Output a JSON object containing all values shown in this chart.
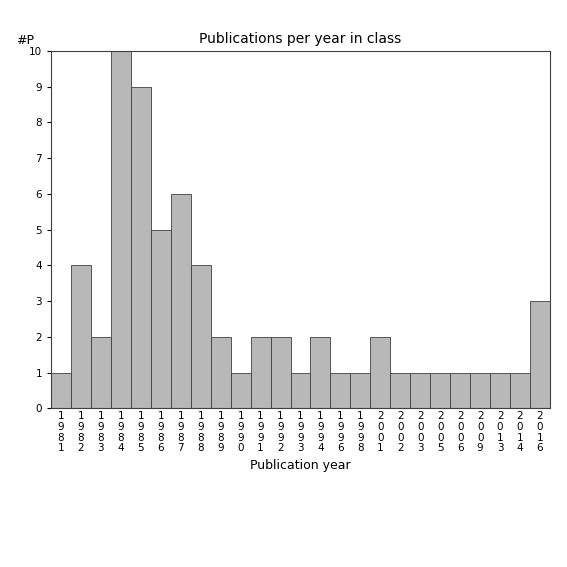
{
  "title": "Publications per year in class",
  "xlabel": "Publication year",
  "ylabel": "#P",
  "categories": [
    "1981",
    "1982",
    "1983",
    "1984",
    "1985",
    "1986",
    "1987",
    "1988",
    "1989",
    "1990",
    "1991",
    "1992",
    "1993",
    "1994",
    "1996",
    "1998",
    "2001",
    "2002",
    "2003",
    "2005",
    "2006",
    "2009",
    "2013",
    "2014",
    "2016"
  ],
  "values": [
    1,
    4,
    2,
    10,
    9,
    5,
    6,
    4,
    2,
    1,
    2,
    2,
    1,
    2,
    1,
    1,
    2,
    1,
    1,
    1,
    1,
    1,
    1,
    1,
    3
  ],
  "bar_color": "#b8b8b8",
  "bar_edge_color": "#404040",
  "ylim": [
    0,
    10
  ],
  "yticks": [
    0,
    1,
    2,
    3,
    4,
    5,
    6,
    7,
    8,
    9,
    10
  ],
  "background_color": "#ffffff",
  "title_fontsize": 10,
  "label_fontsize": 9,
  "tick_fontsize": 7.5
}
